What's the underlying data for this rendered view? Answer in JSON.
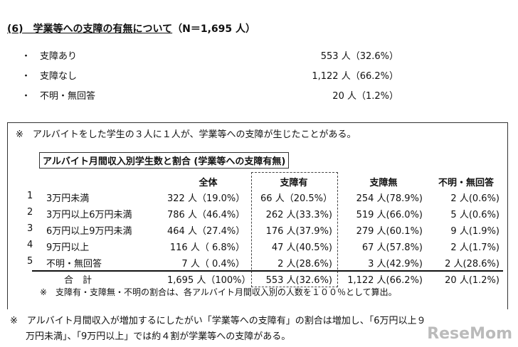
{
  "title": {
    "num": "(6)",
    "heading": "学業等への支障の有無について",
    "n": "（N＝1,695 人）"
  },
  "summary": [
    {
      "bullet": "・",
      "label": "支障あり",
      "value": "553 人（32.6%）"
    },
    {
      "bullet": "・",
      "label": "支障なし",
      "value": "1,122 人（66.2%）"
    },
    {
      "bullet": "・",
      "label": "不明・無回答",
      "value": "20 人（1.2%）"
    }
  ],
  "box_note": "※　アルバイトをした学生の３人に１人が、学業等への支障が生じたことがある。",
  "table": {
    "caption": "アルバイト月間収入別学生数と割合 (学業等への支障有無)",
    "headers": [
      "全体",
      "支障有",
      "支障無",
      "不明・無回答"
    ],
    "rows": [
      {
        "no": "1",
        "label": "3万円未満",
        "cells": [
          "322 人（19.0%）",
          "66 人（20.5%）",
          "254 人(78.9%)",
          "2 人(0.6%)"
        ]
      },
      {
        "no": "2",
        "label": "3万円以上6万円未満",
        "cells": [
          "786 人（46.4%）",
          "262 人(33.3%)",
          "519 人(66.0%)",
          "5 人(0.6%)"
        ]
      },
      {
        "no": "3",
        "label": "6万円以上9万円未満",
        "cells": [
          "464 人（27.4%）",
          "176 人(37.9%)",
          "279 人(60.1%)",
          "9 人(1.9%)"
        ]
      },
      {
        "no": "4",
        "label": "9万円以上",
        "cells": [
          "116 人（ 6.8%）",
          "47 人(40.5%)",
          "67 人(57.8%)",
          "2 人(1.7%)"
        ]
      },
      {
        "no": "5",
        "label": "不明・無回答",
        "cells": [
          "7 人（ 0.4%）",
          "2 人(28.6%)",
          "3 人(42.9%)",
          "2 人(28.6%)"
        ]
      }
    ],
    "total": {
      "label": "合　計",
      "cells": [
        "1,695 人（100%）",
        "553 人(32.6%)",
        "1,122 人(66.2%)",
        "20 人(1.2%)"
      ]
    },
    "footnote": "※　支障有・支障無・不明の割合は、各アルバイト月間収入別の人数を１００％として算出。"
  },
  "conclusion": [
    "※　アルバイト月間収入が増加するにしたがい「学業等への支障有」の割合は増加し、「6万円以上９",
    "万円未満」、「9万円以上」では約４割が学業等への支障がある。"
  ],
  "watermark": "ReseMom"
}
